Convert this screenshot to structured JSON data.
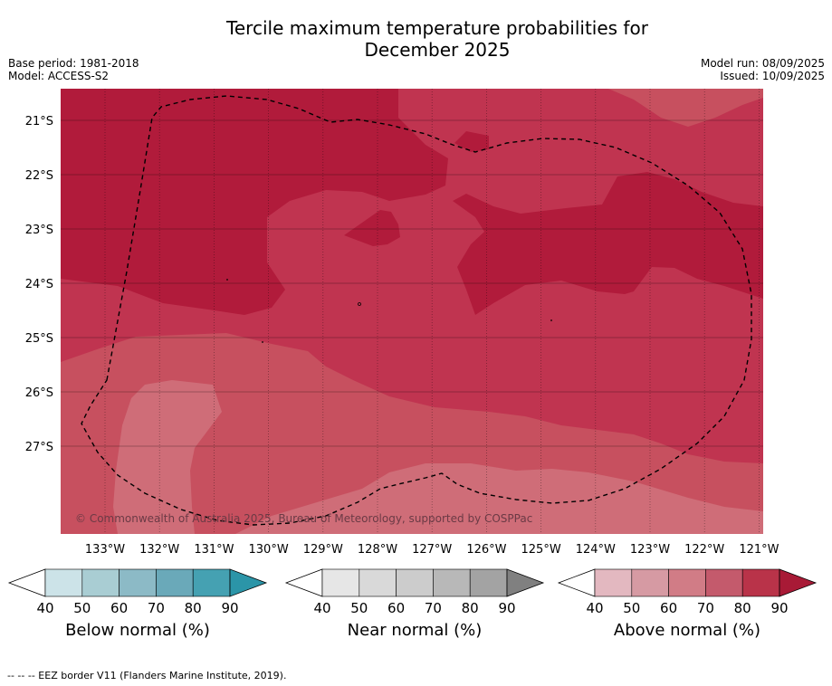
{
  "title_line1": "Tercile maximum temperature probabilities for",
  "title_line2": "December 2025",
  "meta_left": {
    "base_period": "Base period: 1981-2018",
    "model": "Model: ACCESS-S2"
  },
  "meta_right": {
    "model_run": "Model run: 08/09/2025",
    "issued": "Issued: 10/09/2025"
  },
  "map": {
    "lat_labels": [
      "21°S",
      "22°S",
      "23°S",
      "24°S",
      "25°S",
      "26°S",
      "27°S"
    ],
    "lon_labels": [
      "133°W",
      "132°W",
      "131°W",
      "130°W",
      "129°W",
      "128°W",
      "127°W",
      "126°W",
      "125°W",
      "124°W",
      "123°W",
      "122°W",
      "121°W"
    ],
    "copyright": "© Commonwealth of Australia 2025, Bureau of Meteorology, supported by COSPPac",
    "colors": {
      "above_80": "#b11b3b",
      "above_70": "#c03450",
      "above_60": "#c7505f",
      "above_50": "#cf6d78"
    }
  },
  "colorbars": [
    {
      "label": "Below normal (%)",
      "ticks": [
        "40",
        "50",
        "60",
        "70",
        "80",
        "90"
      ],
      "colors": [
        "#ffffff",
        "#cce3e8",
        "#a9cdd3",
        "#8cbac6",
        "#6aa9b9",
        "#45a1b2",
        "#2b95a8"
      ]
    },
    {
      "label": "Near normal (%)",
      "ticks": [
        "40",
        "50",
        "60",
        "70",
        "80",
        "90"
      ],
      "colors": [
        "#ffffff",
        "#e6e6e6",
        "#d9d9d9",
        "#cccccc",
        "#b8b8b8",
        "#a3a3a3",
        "#808080"
      ]
    },
    {
      "label": "Above normal (%)",
      "ticks": [
        "40",
        "50",
        "60",
        "70",
        "80",
        "90"
      ],
      "colors": [
        "#ffffff",
        "#e3b8c0",
        "#d69aa3",
        "#d17c86",
        "#c45a6c",
        "#b93349",
        "#a81a36"
      ]
    }
  ],
  "footnote": "--  --  -- EEZ border V11 (Flanders Marine Institute, 2019)."
}
